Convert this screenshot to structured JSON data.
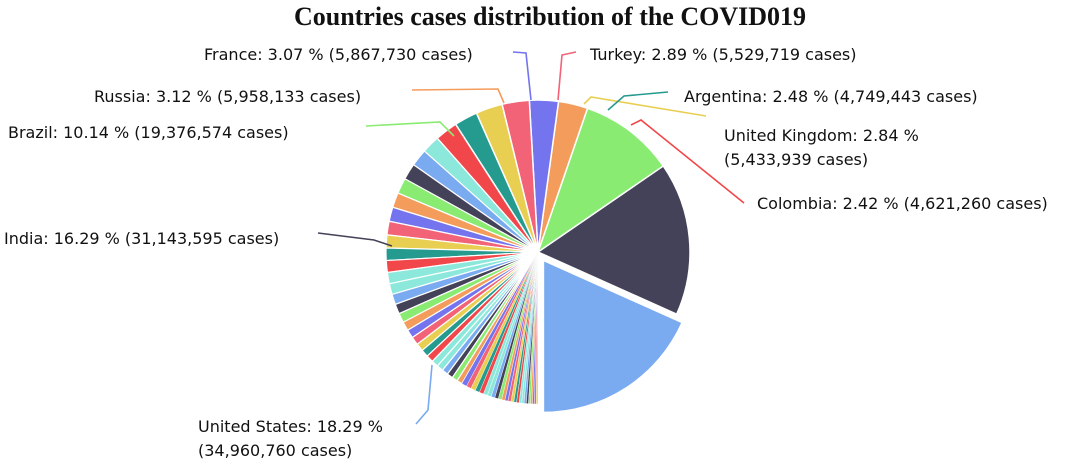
{
  "chart_data": {
    "type": "pie",
    "title": "Countries cases distribution of the COVID019",
    "label_lines": {
      "United States": [
        "United States: 18.29 %",
        "(34,960,760 cases)"
      ],
      "India": [
        "India: 16.29 % (31,143,595 cases)"
      ],
      "Brazil": [
        "Brazil: 10.14 % (19,376,574 cases)"
      ],
      "Russia": [
        "Russia: 3.12 % (5,958,133 cases)"
      ],
      "France": [
        "France: 3.07 % (5,867,730 cases)"
      ],
      "Turkey": [
        "Turkey: 2.89 % (5,529,719 cases)"
      ],
      "Argentina": [
        "Argentina: 2.48 % (4,749,443 cases)"
      ],
      "United Kingdom": [
        "United Kingdom: 2.84 %",
        "(5,433,939 cases)"
      ],
      "Colombia": [
        "Colombia: 2.42 % (4,621,260 cases)"
      ]
    },
    "slices": [
      {
        "name": "United States",
        "percent": 18.29,
        "cases": 34960760,
        "color": "#7aaaf0",
        "offset": true
      },
      {
        "name": "India",
        "percent": 16.29,
        "cases": 31143595,
        "color": "#434258",
        "offset": false
      },
      {
        "name": "Brazil",
        "percent": 10.14,
        "cases": 19376574,
        "color": "#8aeb72",
        "offset": false
      },
      {
        "name": "Russia",
        "percent": 3.12,
        "cases": 5958133,
        "color": "#f49c5c",
        "offset": false
      },
      {
        "name": "France",
        "percent": 3.07,
        "cases": 5867730,
        "color": "#7474ef",
        "offset": false
      },
      {
        "name": "Turkey",
        "percent": 2.89,
        "cases": 5529719,
        "color": "#f26378",
        "offset": false
      },
      {
        "name": "United Kingdom",
        "percent": 2.84,
        "cases": 5433939,
        "color": "#e8cf52",
        "offset": false
      },
      {
        "name": "Argentina",
        "percent": 2.48,
        "cases": 4749443,
        "color": "#259b8f",
        "offset": false
      },
      {
        "name": "Colombia",
        "percent": 2.42,
        "cases": 4621260,
        "color": "#f2474a",
        "offset": false
      }
    ],
    "other_slices_percent": 38.46,
    "other_slices_count": 52,
    "other_colors": [
      "#8de8dc",
      "#7aaaf0",
      "#434258",
      "#8aeb72",
      "#f49c5c",
      "#7474ef",
      "#f26378",
      "#e8cf52",
      "#259b8f",
      "#f2474a",
      "#8de8dc"
    ]
  }
}
